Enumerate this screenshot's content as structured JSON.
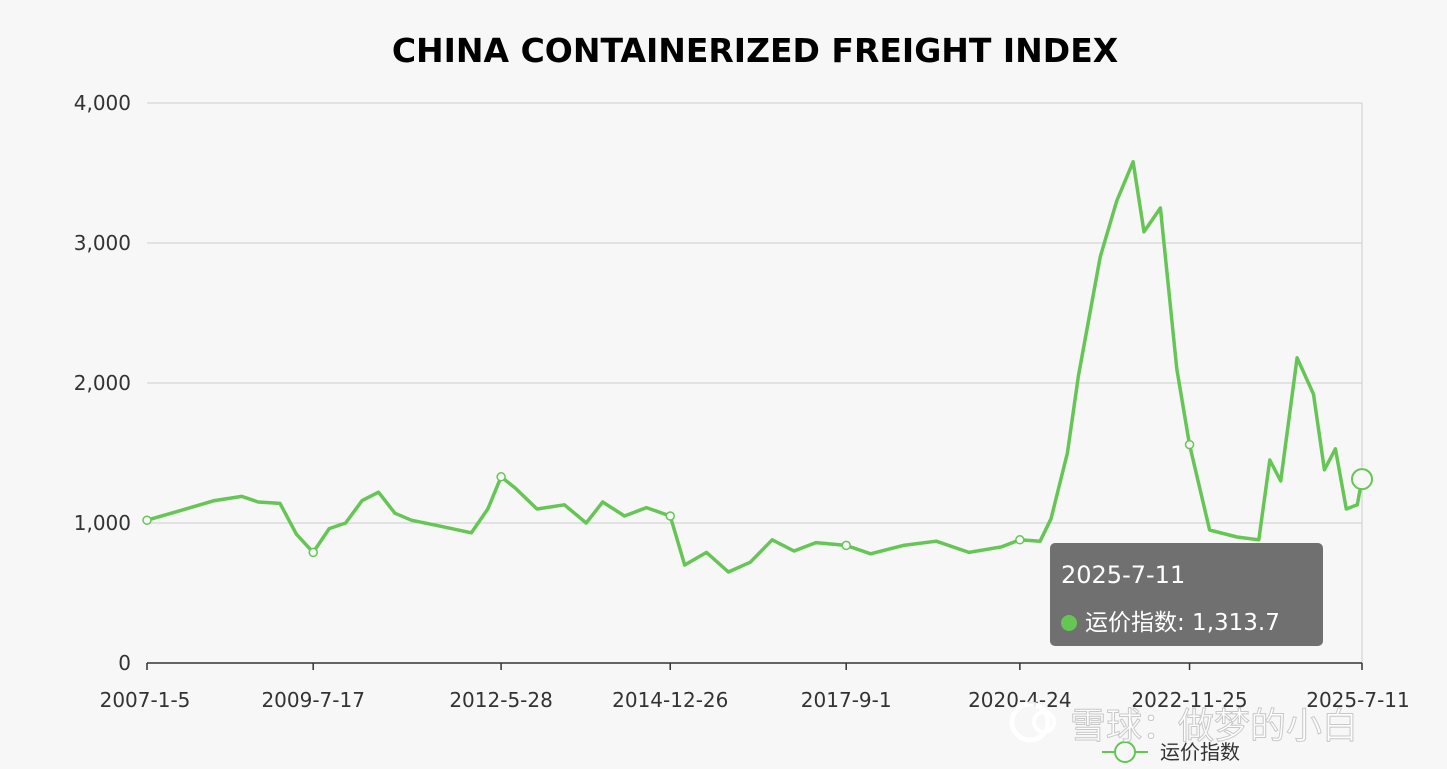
{
  "colors": {
    "series": "#66c655",
    "axis": "#333333",
    "grid": "#cccccc",
    "background": "#f7f7f7"
  },
  "chart_data": {
    "type": "line",
    "title": "CHINA CONTAINERIZED FREIGHT INDEX",
    "xlabel": "",
    "ylabel": "",
    "ylim": [
      0,
      4000
    ],
    "yticks": [
      "0",
      "1,000",
      "2,000",
      "3,000",
      "4,000"
    ],
    "xticks": [
      "2007-1-5",
      "2009-7-17",
      "2012-5-28",
      "2014-12-26",
      "2017-9-1",
      "2020-4-24",
      "2022-11-25",
      "2025-7-11"
    ],
    "grid": true,
    "legend": {
      "position": "bottom-right",
      "entries": [
        "运价指数"
      ]
    },
    "series": [
      {
        "name": "运价指数",
        "x": [
          "2007-1-5",
          "2007-6",
          "2008-1",
          "2008-6",
          "2008-9",
          "2009-1",
          "2009-4",
          "2009-7-17",
          "2009-10",
          "2010-1",
          "2010-4",
          "2010-7",
          "2010-10",
          "2011-1",
          "2011-6",
          "2011-12",
          "2012-3",
          "2012-5-28",
          "2012-8",
          "2012-12",
          "2013-5",
          "2013-9",
          "2013-12",
          "2014-4",
          "2014-8",
          "2014-12-26",
          "2015-3",
          "2015-7",
          "2015-11",
          "2016-3",
          "2016-7",
          "2016-11",
          "2017-3",
          "2017-9-1",
          "2018-1",
          "2018-7",
          "2019-1",
          "2019-7",
          "2020-1",
          "2020-4-24",
          "2020-8",
          "2020-10",
          "2021-1",
          "2021-3",
          "2021-7",
          "2021-10",
          "2022-1",
          "2022-3",
          "2022-6",
          "2022-9",
          "2022-11-25",
          "2023-3",
          "2023-8",
          "2023-12",
          "2024-2",
          "2024-4",
          "2024-7",
          "2024-10",
          "2024-12",
          "2025-2",
          "2025-4",
          "2025-6",
          "2025-7-11"
        ],
        "values": [
          1020,
          1080,
          1160,
          1190,
          1150,
          1140,
          920,
          790,
          960,
          1000,
          1160,
          1220,
          1070,
          1020,
          980,
          930,
          1100,
          1330,
          1250,
          1100,
          1130,
          1000,
          1150,
          1050,
          1110,
          1050,
          700,
          790,
          650,
          720,
          880,
          800,
          860,
          840,
          780,
          840,
          870,
          790,
          830,
          880,
          870,
          1030,
          1500,
          2050,
          2900,
          3300,
          3580,
          3080,
          3250,
          2100,
          1560,
          950,
          900,
          880,
          1450,
          1300,
          2180,
          1920,
          1380,
          1530,
          1100,
          1130,
          1313.7
        ]
      }
    ],
    "tooltip": {
      "date": "2025-7-11",
      "label": "运价指数: 1,313.7"
    }
  },
  "watermark": "雪球：做梦的小白"
}
